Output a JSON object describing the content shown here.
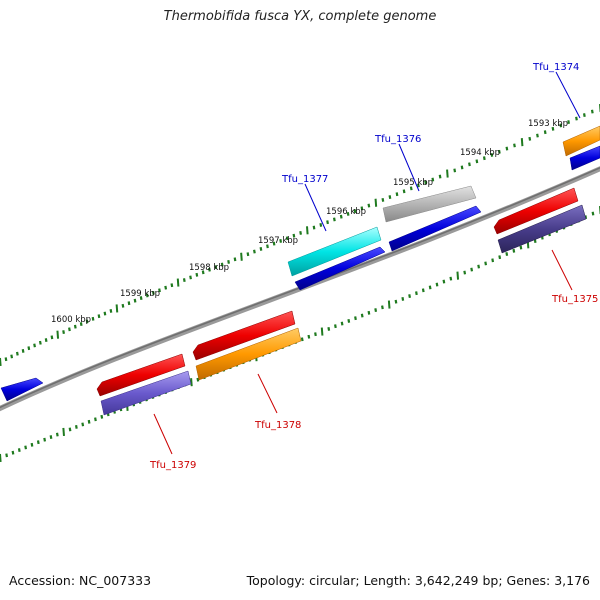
{
  "title": "Thermobifida fusca YX, complete genome",
  "accession": "Accession: NC_007333",
  "summary": "Topology: circular; Length: 3,642,249 bp; Genes: 3,176",
  "ticks": [
    "1593 kbp",
    "1594 kbp",
    "1595 kbp",
    "1596 kbp",
    "1597 kbp",
    "1598 kbp",
    "1599 kbp",
    "1600 kbp"
  ],
  "genes": {
    "tfu_1374": {
      "label": "Tfu_1374",
      "color": "#0000cc"
    },
    "tfu_1375": {
      "label": "Tfu_1375",
      "color": "#cc0000"
    },
    "tfu_1376": {
      "label": "Tfu_1376",
      "color": "#0000cc"
    },
    "tfu_1377": {
      "label": "Tfu_1377",
      "color": "#0000cc"
    },
    "tfu_1378": {
      "label": "Tfu_1378",
      "color": "#cc0000"
    },
    "tfu_1379": {
      "label": "Tfu_1379",
      "color": "#cc0000"
    }
  },
  "colors": {
    "backbone": "#808080",
    "tick": "#1f7a1f",
    "cds_forward": "#0000dd",
    "cds_reverse": "#ee0000",
    "cog_cyan": "#00e5e5",
    "cog_grey": "#b0b0b0",
    "cog_orange": "#ff9900",
    "cog_purple": "#6a5acd",
    "cog_darkpurple": "#483d8b"
  }
}
